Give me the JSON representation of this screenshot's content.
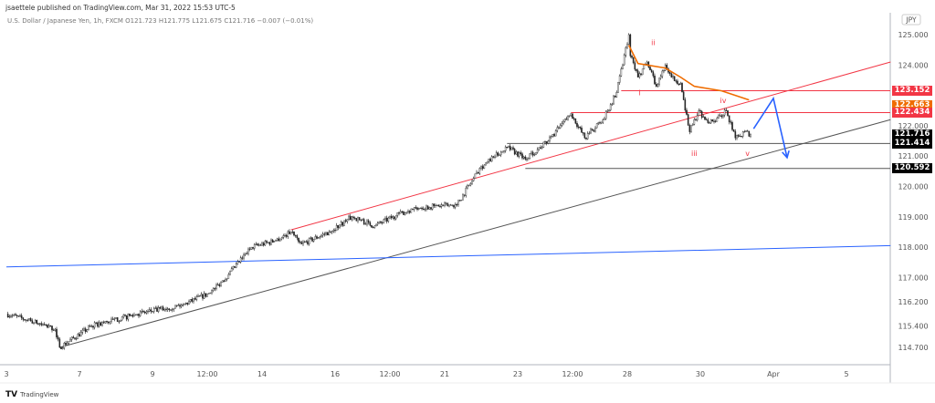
{
  "header": {
    "published": "jsaettele published on TradingView.com, Mar 31, 2022 15:53 UTC-5",
    "symbol_line": "U.S. Dollar / Japanese Yen, 1h, FXCM  O121.723  H121.775  L121.675  C121.716  −0.007 (−0.01%)"
  },
  "footer": {
    "logo_icon": "tradingview-logo",
    "brand": "TradingView",
    "logo_mark": "TV"
  },
  "chart_data": {
    "type": "candlestick",
    "symbol": "USDJPY",
    "currency_label": "JPY",
    "interval": "1h",
    "ylim": [
      114.3,
      125.3
    ],
    "grid": false,
    "y_ticks": [
      "125.000",
      "124.000",
      "122.000",
      "121.000",
      "120.000",
      "119.000",
      "118.000",
      "117.000",
      "116.200",
      "115.400",
      "114.700"
    ],
    "x_ticks": [
      {
        "label": "3",
        "at": "Mar 3 00:00"
      },
      {
        "label": "7",
        "at": "Mar 7 00:00"
      },
      {
        "label": "9",
        "at": "Mar 9 00:00"
      },
      {
        "label": "12:00",
        "at": "Mar 10 12:00"
      },
      {
        "label": "14",
        "at": "Mar 14 00:00"
      },
      {
        "label": "16",
        "at": "Mar 16 00:00"
      },
      {
        "label": "12:00",
        "at": "Mar 17 12:00"
      },
      {
        "label": "21",
        "at": "Mar 21 00:00"
      },
      {
        "label": "23",
        "at": "Mar 23 00:00"
      },
      {
        "label": "12:00",
        "at": "Mar 24 12:00"
      },
      {
        "label": "28",
        "at": "Mar 28 00:00"
      },
      {
        "label": "30",
        "at": "Mar 30 00:00"
      },
      {
        "label": "Apr",
        "at": "Apr 1 00:00"
      },
      {
        "label": "5",
        "at": "Apr 5 00:00"
      }
    ],
    "price_path": [
      [
        "Mar 3 00:00",
        115.8
      ],
      [
        "Mar 3 14:00",
        115.6
      ],
      [
        "Mar 4 08:00",
        115.3
      ],
      [
        "Mar 4 11:00",
        114.7
      ],
      [
        "Mar 7 08:00",
        115.4
      ],
      [
        "Mar 8 14:00",
        115.8
      ],
      [
        "Mar 9 20:00",
        116.1
      ],
      [
        "Mar 10 14:00",
        116.5
      ],
      [
        "Mar 11 02:00",
        117.1
      ],
      [
        "Mar 11 17:00",
        118.0
      ],
      [
        "Mar 14 08:00",
        118.2
      ],
      [
        "Mar 14 19:00",
        118.5
      ],
      [
        "Mar 15 02:00",
        118.1
      ],
      [
        "Mar 15 20:00",
        118.5
      ],
      [
        "Mar 16 11:00",
        119.0
      ],
      [
        "Mar 17 02:00",
        118.7
      ],
      [
        "Mar 17 14:00",
        119.0
      ],
      [
        "Mar 18 05:00",
        119.3
      ],
      [
        "Mar 21 08:00",
        119.4
      ],
      [
        "Mar 21 17:00",
        120.1
      ],
      [
        "Mar 21 23:00",
        120.6
      ],
      [
        "Mar 22 17:00",
        121.3
      ],
      [
        "Mar 23 05:00",
        120.9
      ],
      [
        "Mar 23 20:00",
        121.5
      ],
      [
        "Mar 24 11:00",
        122.4
      ],
      [
        "Mar 24 20:00",
        121.6
      ],
      [
        "Mar 25 08:00",
        122.2
      ],
      [
        "Mar 25 17:00",
        123.1
      ],
      [
        "Mar 28 01:00",
        125.0
      ],
      [
        "Mar 28 02:00",
        124.3
      ],
      [
        "Mar 28 07:00",
        123.6
      ],
      [
        "Mar 28 13:00",
        124.1
      ],
      [
        "Mar 28 19:00",
        123.3
      ],
      [
        "Mar 29 01:00",
        124.0
      ],
      [
        "Mar 29 05:00",
        123.6
      ],
      [
        "Mar 29 11:00",
        123.4
      ],
      [
        "Mar 29 17:00",
        121.8
      ],
      [
        "Mar 29 23:00",
        122.5
      ],
      [
        "Mar 30 05:00",
        122.1
      ],
      [
        "Mar 30 14:00",
        122.3
      ],
      [
        "Mar 30 17:00",
        122.5
      ],
      [
        "Mar 30 23:00",
        121.6
      ],
      [
        "Mar 31 05:00",
        121.8
      ],
      [
        "Mar 31 09:00",
        121.716
      ]
    ],
    "drawings": {
      "trendlines": [
        {
          "color": "#f23645",
          "from": [
            "Mar 14 19:00",
            118.57
          ],
          "to": [
            "Apr 6 05:00",
            124.1
          ]
        },
        {
          "color": "#555555",
          "from": [
            "Mar 4 11:00",
            114.7
          ],
          "to": [
            "Apr 6 05:00",
            122.2
          ]
        },
        {
          "color": "#2962ff",
          "from": [
            "Mar 3 00:00",
            117.35
          ],
          "to": [
            "Apr 6 05:00",
            118.05
          ]
        }
      ],
      "horizontal": [
        {
          "price": 123.152,
          "color": "#f23645",
          "from": "Mar 25 20:00"
        },
        {
          "price": 122.434,
          "color": "#f23645",
          "from": "Mar 24 11:00"
        },
        {
          "price": 121.414,
          "color": "#555555",
          "from": "Mar 22 17:00"
        },
        {
          "price": 120.592,
          "color": "#555555",
          "from": "Mar 23 05:00"
        }
      ],
      "moving_average": {
        "color": "#ef6c00",
        "points": [
          [
            "Mar 28 01:00",
            124.65
          ],
          [
            "Mar 28 07:00",
            124.05
          ],
          [
            "Mar 29 01:00",
            123.9
          ],
          [
            "Mar 29 11:00",
            123.6
          ],
          [
            "Mar 29 20:00",
            123.3
          ],
          [
            "Mar 30 14:00",
            123.15
          ],
          [
            "Mar 31 08:00",
            122.85
          ]
        ]
      },
      "projection": {
        "color": "#2962ff",
        "points": [
          [
            "Mar 31 11:00",
            121.9
          ],
          [
            "Apr 1 00:00",
            122.9
          ],
          [
            "Apr 1 09:00",
            120.95
          ]
        ]
      },
      "wave_labels": [
        {
          "text": "i",
          "at": [
            "Mar 28 08:00",
            123.0
          ]
        },
        {
          "text": "ii",
          "at": [
            "Mar 28 17:00",
            124.65
          ]
        },
        {
          "text": "iii",
          "at": [
            "Mar 29 20:00",
            121.0
          ]
        },
        {
          "text": "iv",
          "at": [
            "Mar 30 15:00",
            122.75
          ]
        },
        {
          "text": "v",
          "at": [
            "Mar 31 07:00",
            121.0
          ]
        }
      ]
    },
    "price_labels": [
      {
        "value": "123.152",
        "color": "#f23645"
      },
      {
        "value": "122.663",
        "color": "#ef6c00"
      },
      {
        "value": "122.434",
        "color": "#f23645"
      },
      {
        "value": "121.716",
        "color": "#000000"
      },
      {
        "value": "121.414",
        "color": "#000000"
      },
      {
        "value": "120.592",
        "color": "#000000"
      }
    ]
  }
}
